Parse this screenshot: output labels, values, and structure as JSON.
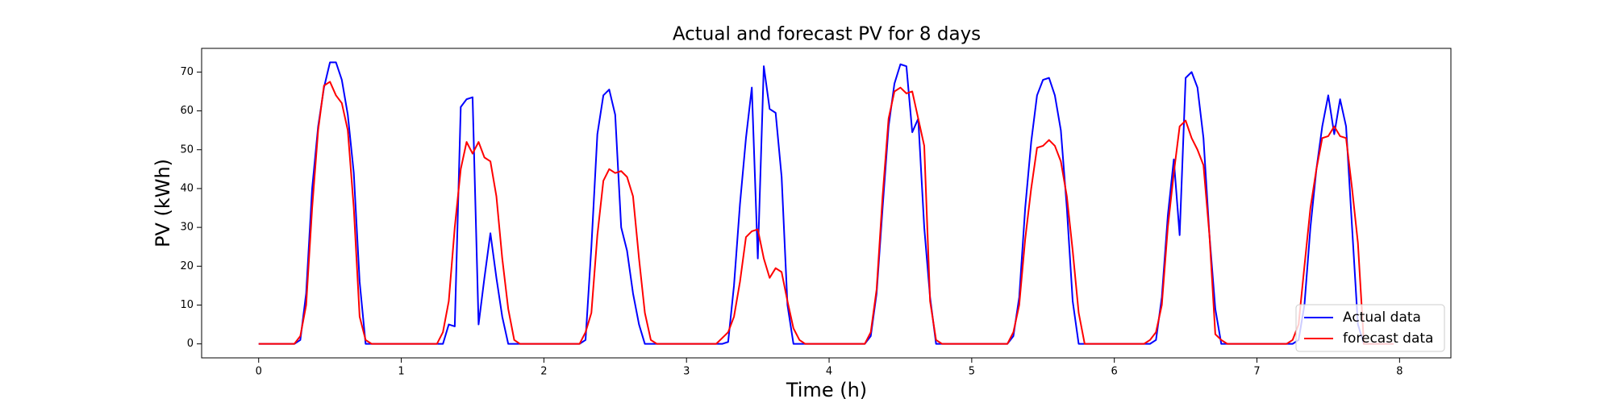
{
  "chart_data": {
    "type": "line",
    "title": "Actual and forecast PV for 8 days",
    "xlabel": "Time (h)",
    "ylabel": "PV (kWh)",
    "x": [
      0,
      0.042,
      0.083,
      0.125,
      0.167,
      0.208,
      0.25,
      0.292,
      0.333,
      0.375,
      0.417,
      0.458,
      0.5,
      0.542,
      0.583,
      0.625,
      0.667,
      0.708,
      0.75,
      0.792,
      0.833,
      0.875,
      0.917,
      0.958,
      1,
      1.042,
      1.083,
      1.125,
      1.167,
      1.208,
      1.25,
      1.292,
      1.333,
      1.375,
      1.417,
      1.458,
      1.5,
      1.542,
      1.583,
      1.625,
      1.667,
      1.708,
      1.75,
      1.792,
      1.833,
      1.875,
      1.917,
      1.958,
      2,
      2.042,
      2.083,
      2.125,
      2.167,
      2.208,
      2.25,
      2.292,
      2.333,
      2.375,
      2.417,
      2.458,
      2.5,
      2.542,
      2.583,
      2.625,
      2.667,
      2.708,
      2.75,
      2.792,
      2.833,
      2.875,
      2.917,
      2.958,
      3,
      3.042,
      3.083,
      3.125,
      3.167,
      3.208,
      3.25,
      3.292,
      3.333,
      3.375,
      3.417,
      3.458,
      3.5,
      3.542,
      3.583,
      3.625,
      3.667,
      3.708,
      3.75,
      3.792,
      3.833,
      3.875,
      3.917,
      3.958,
      4,
      4.042,
      4.083,
      4.125,
      4.167,
      4.208,
      4.25,
      4.292,
      4.333,
      4.375,
      4.417,
      4.458,
      4.5,
      4.542,
      4.583,
      4.625,
      4.667,
      4.708,
      4.75,
      4.792,
      4.833,
      4.875,
      4.917,
      4.958,
      5,
      5.042,
      5.083,
      5.125,
      5.167,
      5.208,
      5.25,
      5.292,
      5.333,
      5.375,
      5.417,
      5.458,
      5.5,
      5.542,
      5.583,
      5.625,
      5.667,
      5.708,
      5.75,
      5.792,
      5.833,
      5.875,
      5.917,
      5.958,
      6,
      6.042,
      6.083,
      6.125,
      6.167,
      6.208,
      6.25,
      6.292,
      6.333,
      6.375,
      6.417,
      6.458,
      6.5,
      6.542,
      6.583,
      6.625,
      6.667,
      6.708,
      6.75,
      6.792,
      6.833,
      6.875,
      6.917,
      6.958,
      7,
      7.042,
      7.083,
      7.125,
      7.167,
      7.208,
      7.25,
      7.292,
      7.333,
      7.375,
      7.417,
      7.458,
      7.5,
      7.542,
      7.583,
      7.625,
      7.667,
      7.708,
      7.75,
      7.792,
      7.833,
      7.875,
      7.917,
      7.958
    ],
    "series": [
      {
        "name": "Actual data",
        "color": "#0000ff",
        "values": [
          0,
          0,
          0,
          0,
          0,
          0,
          0,
          1,
          13,
          40,
          56,
          66,
          72.5,
          72.5,
          68,
          59,
          44,
          16,
          0,
          0,
          0,
          0,
          0,
          0,
          0,
          0,
          0,
          0,
          0,
          0,
          0,
          0,
          5,
          4.5,
          61,
          63,
          63.5,
          5,
          17,
          28.5,
          17,
          7,
          0,
          0,
          0,
          0,
          0,
          0,
          0,
          0,
          0,
          0,
          0,
          0,
          0,
          1,
          25,
          54,
          64,
          65.5,
          59,
          30,
          24,
          13,
          5,
          0,
          0,
          0,
          0,
          0,
          0,
          0,
          0,
          0,
          0,
          0,
          0,
          0,
          0,
          0.5,
          15,
          36,
          53,
          66,
          22,
          71.5,
          60.5,
          59.5,
          43,
          10,
          0,
          0,
          0,
          0,
          0,
          0,
          0,
          0,
          0,
          0,
          0,
          0,
          0,
          2,
          13,
          35,
          56,
          67,
          72,
          71.5,
          54.5,
          58,
          30,
          12,
          0,
          0,
          0,
          0,
          0,
          0,
          0,
          0,
          0,
          0,
          0,
          0,
          0,
          2,
          12,
          35,
          52,
          64,
          68,
          68.5,
          64,
          55,
          35,
          11,
          0,
          0,
          0,
          0,
          0,
          0,
          0,
          0,
          0,
          0,
          0,
          0,
          0,
          1,
          12,
          33,
          47.5,
          28,
          68.5,
          70,
          66,
          53,
          28,
          9,
          0,
          0,
          0,
          0,
          0,
          0,
          0,
          0,
          0,
          0,
          0,
          0,
          0,
          1,
          10,
          30,
          45,
          56,
          64,
          54,
          63,
          56,
          30,
          5,
          0,
          0,
          0,
          0,
          0,
          0
        ]
      },
      {
        "name": "forecast data",
        "color": "#ff0000",
        "values": [
          0,
          0,
          0,
          0,
          0,
          0,
          0,
          2,
          10,
          35,
          55,
          66.5,
          67.5,
          64,
          62,
          55,
          35,
          7,
          1,
          0,
          0,
          0,
          0,
          0,
          0,
          0,
          0,
          0,
          0,
          0,
          0,
          3,
          11,
          30,
          45,
          52,
          49,
          52,
          48,
          47,
          38,
          22,
          9,
          1,
          0,
          0,
          0,
          0,
          0,
          0,
          0,
          0,
          0,
          0,
          0,
          3,
          8,
          28,
          42,
          45,
          44,
          44.5,
          43,
          38,
          22,
          8,
          1,
          0,
          0,
          0,
          0,
          0,
          0,
          0,
          0,
          0,
          0,
          0,
          1.5,
          3,
          7,
          16,
          27.5,
          29,
          29.5,
          22,
          17,
          19.5,
          18.5,
          11,
          4,
          1,
          0,
          0,
          0,
          0,
          0,
          0,
          0,
          0,
          0,
          0,
          0,
          3,
          14,
          38,
          58,
          65,
          66,
          64.5,
          65,
          58,
          51,
          11,
          1,
          0,
          0,
          0,
          0,
          0,
          0,
          0,
          0,
          0,
          0,
          0,
          0,
          3,
          10,
          27,
          40,
          50.5,
          51,
          52.5,
          51,
          47,
          38,
          24,
          8,
          0,
          0,
          0,
          0,
          0,
          0,
          0,
          0,
          0,
          0,
          0,
          1,
          3,
          10,
          30,
          44,
          56,
          57.5,
          53,
          50,
          46,
          28,
          2.5,
          1,
          0,
          0,
          0,
          0,
          0,
          0,
          0,
          0,
          0,
          0,
          0,
          1,
          5,
          20,
          35,
          45,
          53,
          53.5,
          56,
          53.5,
          53,
          40,
          26,
          0,
          0,
          0,
          0,
          0,
          0
        ]
      }
    ],
    "xlim": [
      -0.4,
      8.36
    ],
    "xticks": [
      0,
      1,
      2,
      3,
      4,
      5,
      6,
      7,
      8
    ],
    "ylim": [
      -3.6,
      76.1
    ],
    "yticks": [
      0,
      10,
      20,
      30,
      40,
      50,
      60,
      70
    ],
    "legend": "lower right"
  }
}
